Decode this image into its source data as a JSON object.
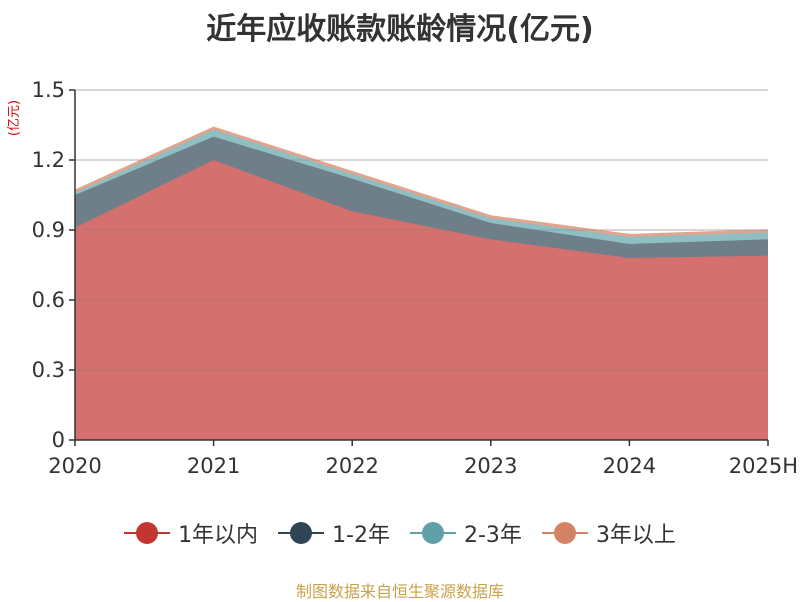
{
  "chart_data": {
    "type": "area",
    "stacked": true,
    "title": "近年应收账款账龄情况(亿元)",
    "unit_label": "(亿元)",
    "categories": [
      "2020",
      "2021",
      "2022",
      "2023",
      "2024",
      "2025H"
    ],
    "ylim": [
      0,
      1.5
    ],
    "yticks": [
      0,
      0.3,
      0.6,
      0.9,
      1.2,
      1.5
    ],
    "ytick_labels": [
      "0",
      "0.3",
      "0.6",
      "0.9",
      "1.2",
      "1.5"
    ],
    "grid": true,
    "legend_position": "bottom",
    "series": [
      {
        "name": "1年以内",
        "values": [
          0.91,
          1.2,
          0.98,
          0.86,
          0.78,
          0.79
        ],
        "color": "#c23531",
        "fill": "#d4706e"
      },
      {
        "name": "1-2年",
        "values": [
          0.14,
          0.1,
          0.14,
          0.07,
          0.06,
          0.07
        ],
        "color": "#2f4554",
        "fill": "#6f7f8a"
      },
      {
        "name": "2-3年",
        "values": [
          0.01,
          0.03,
          0.02,
          0.02,
          0.03,
          0.03
        ],
        "color": "#61a0a8",
        "fill": "#8fbec3"
      },
      {
        "name": "3年以上",
        "values": [
          0.01,
          0.01,
          0.01,
          0.01,
          0.01,
          0.01
        ],
        "color": "#d48265",
        "fill": "#e3a48d"
      }
    ]
  },
  "footer": {
    "source": "制图数据来自恒生聚源数据库"
  }
}
